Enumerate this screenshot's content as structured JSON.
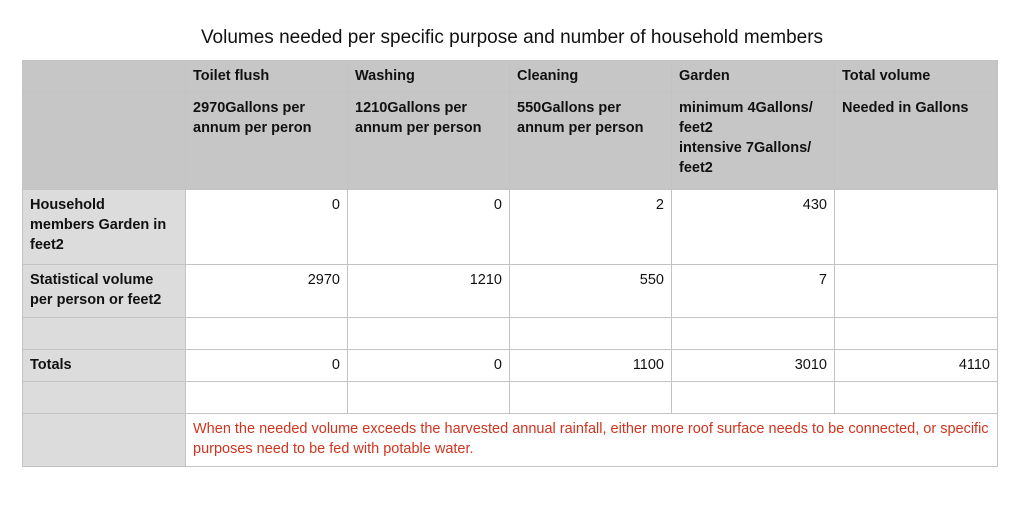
{
  "title": "Volumes needed per specific purpose and number of household members",
  "columns": [
    {
      "name": "Toilet flush",
      "rate_lines": [
        "2970Gallons per",
        "annum per peron"
      ]
    },
    {
      "name": "Washing",
      "rate_lines": [
        "1210Gallons per",
        "annum per person"
      ]
    },
    {
      "name": "Cleaning",
      "rate_lines": [
        "550Gallons per",
        "annum per person"
      ]
    },
    {
      "name": "Garden",
      "rate_lines": [
        "minimum 4Gallons/",
        "feet2",
        "intensive 7Gallons/",
        "feet2"
      ]
    },
    {
      "name": "Total volume",
      "rate_lines": [
        "Needed in Gallons"
      ]
    }
  ],
  "rows": {
    "household": {
      "label_lines": [
        "Household",
        "members Garden in",
        "feet2"
      ],
      "values": [
        "0",
        "0",
        "2",
        "430",
        ""
      ]
    },
    "statistical": {
      "label_lines": [
        "Statistical volume",
        "per person or feet2"
      ],
      "values": [
        "2970",
        "1210",
        "550",
        "7",
        ""
      ]
    },
    "totals": {
      "label": "Totals",
      "values": [
        "0",
        "0",
        "1100",
        "3010",
        "4110"
      ]
    }
  },
  "note": "When the needed volume exceeds the harvested annual rainfall, either more roof surface needs to be connected, or specific purposes need to be fed with potable water.",
  "colors": {
    "header_bg": "#c6c6c6",
    "label_bg": "#dcdcdc",
    "note_text": "#d0341f",
    "border": "#c3c3c3"
  }
}
